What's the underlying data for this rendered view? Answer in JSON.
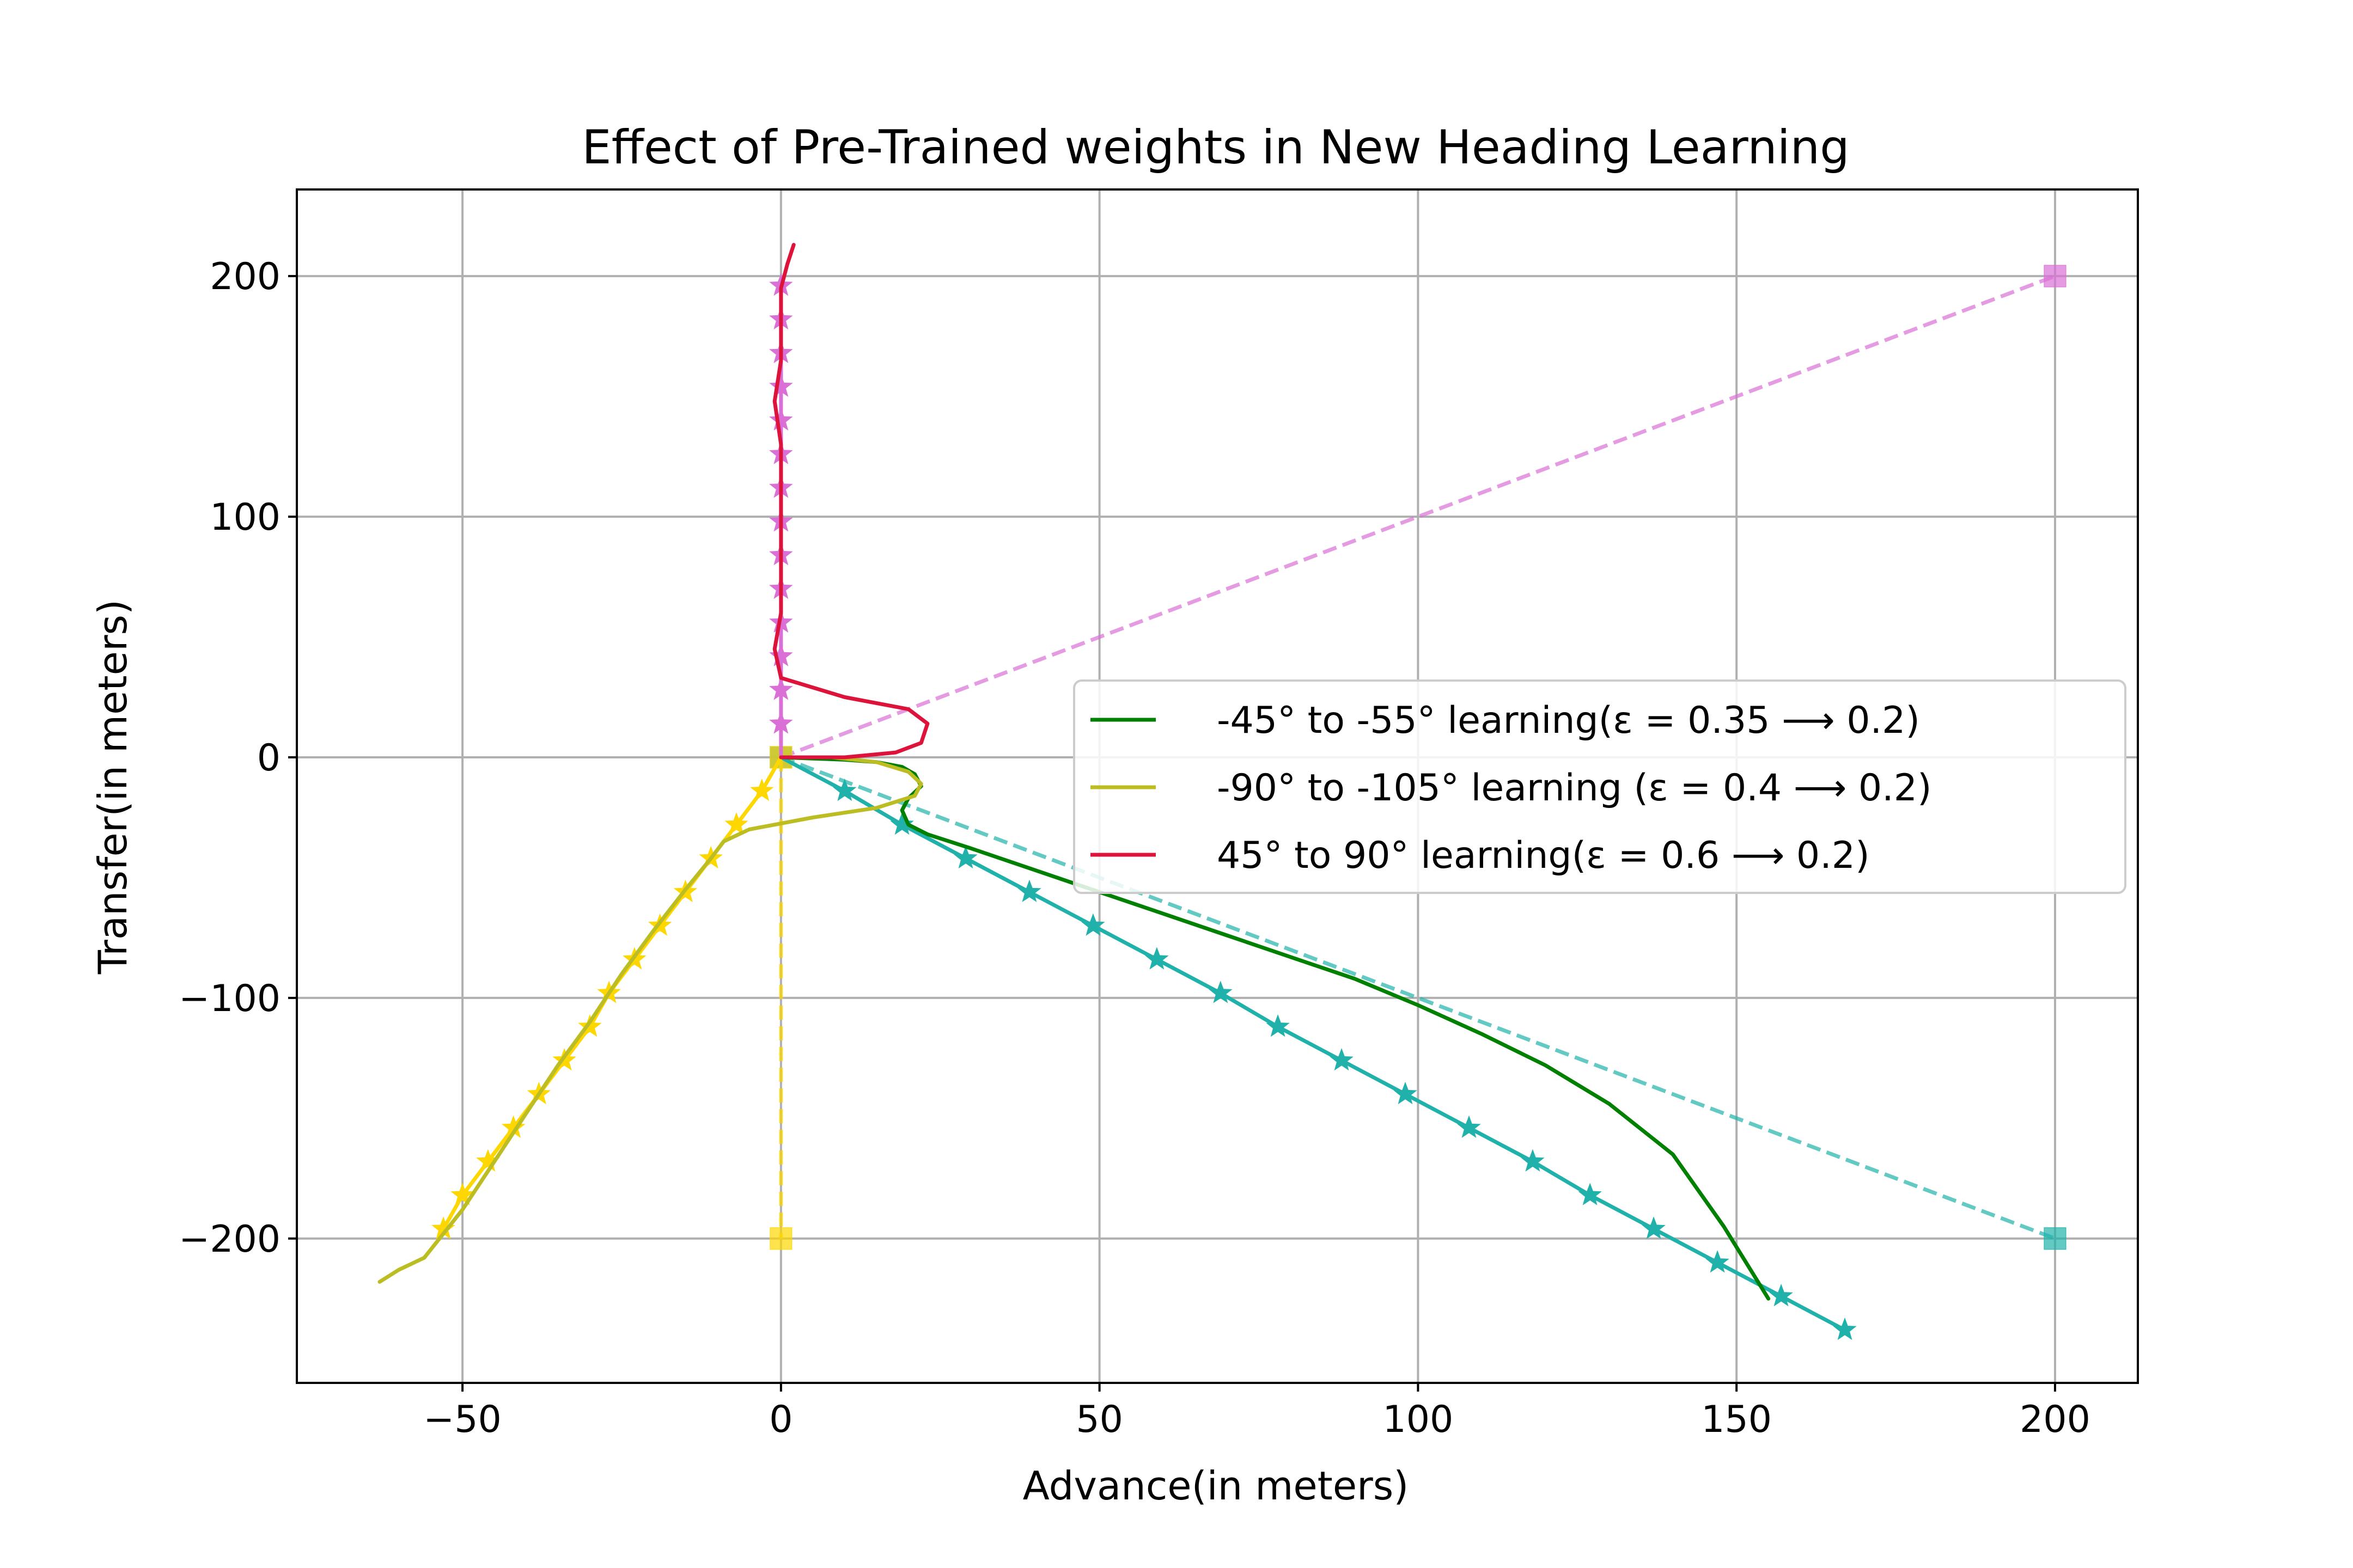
{
  "chart_data": {
    "type": "line",
    "title": "Effect of Pre-Trained weights in New Heading Learning",
    "xlabel": "Advance(in meters)",
    "ylabel": "Transfer(in meters)",
    "xlim": [
      -76,
      213
    ],
    "ylim": [
      -260,
      236
    ],
    "xticks": [
      -50,
      0,
      50,
      100,
      150,
      200
    ],
    "yticks": [
      -200,
      -100,
      0,
      100,
      200
    ],
    "xtick_labels": [
      "−50",
      "0",
      "50",
      "100",
      "150",
      "200"
    ],
    "ytick_labels": [
      "−200",
      "−100",
      "0",
      "100",
      "200"
    ],
    "grid": true,
    "legend_position": "center-right",
    "series": [
      {
        "name": "-45° to -55° learning(ε = 0.35 ⟶ 0.2)",
        "color": "#008000",
        "style": "solid",
        "in_legend": true,
        "x": [
          0,
          5,
          10,
          15,
          19,
          21,
          22,
          20,
          19,
          20,
          23,
          30,
          40,
          50,
          60,
          70,
          80,
          90,
          100,
          110,
          120,
          130,
          140,
          148,
          155
        ],
        "y": [
          0,
          -0.5,
          -1,
          -2,
          -4,
          -7,
          -12,
          -17,
          -22,
          -28,
          -32,
          -38,
          -47,
          -56,
          -65,
          -74,
          -83,
          -92,
          -103,
          -115,
          -128,
          -144,
          -165,
          -195,
          -225
        ]
      },
      {
        "name": "-90° to -105° learning (ε = 0.4 ⟶ 0.2)",
        "color": "#bcbd22",
        "style": "solid",
        "in_legend": true,
        "x": [
          0,
          8,
          15,
          20,
          22,
          21,
          15,
          5,
          -5,
          -9,
          -11,
          -15,
          -20,
          -25,
          -30,
          -35,
          -40,
          -45,
          -50,
          -56,
          -60,
          -63
        ],
        "y": [
          0,
          0,
          -2,
          -6,
          -11,
          -16,
          -21,
          -25,
          -30,
          -35,
          -42,
          -55,
          -72,
          -90,
          -110,
          -128,
          -148,
          -168,
          -188,
          -208,
          -213,
          -218
        ]
      },
      {
        "name": "45° to 90° learning(ε = 0.6 ⟶ 0.2)",
        "color": "#dc143c",
        "style": "solid",
        "in_legend": true,
        "x": [
          0,
          10,
          18,
          22,
          23,
          20,
          10,
          0,
          -1,
          0,
          0,
          0,
          0,
          0,
          -1,
          0,
          0,
          0,
          1,
          2
        ],
        "y": [
          0,
          0,
          2,
          6,
          14,
          20,
          25,
          33,
          45,
          60,
          78,
          95,
          112,
          130,
          148,
          165,
          180,
          195,
          205,
          213
        ]
      },
      {
        "name": "",
        "color": "#20b2aa",
        "style": "solid-star",
        "in_legend": false,
        "x": [
          0,
          10,
          19,
          29,
          39,
          49,
          59,
          69,
          78,
          88,
          98,
          108,
          118,
          127,
          137,
          147,
          157,
          167
        ],
        "y": [
          0,
          -14,
          -28,
          -42,
          -56,
          -70,
          -84,
          -98,
          -112,
          -126,
          -140,
          -154,
          -168,
          -182,
          -196,
          -210,
          -224,
          -238
        ]
      },
      {
        "name": "",
        "color": "#ffd700",
        "style": "solid-star",
        "in_legend": false,
        "x": [
          0,
          -3,
          -7,
          -11,
          -15,
          -19,
          -23,
          -27,
          -30,
          -34,
          -38,
          -42,
          -46,
          -50,
          -53
        ],
        "y": [
          0,
          -14,
          -28,
          -42,
          -56,
          -70,
          -84,
          -98,
          -112,
          -126,
          -140,
          -154,
          -168,
          -182,
          -196
        ]
      },
      {
        "name": "",
        "color": "#da70d6",
        "style": "solid-star",
        "in_legend": false,
        "x": [
          0,
          0,
          0,
          0,
          0,
          0,
          0,
          0,
          0,
          0,
          0,
          0,
          0,
          0,
          0
        ],
        "y": [
          0,
          14,
          28,
          42,
          56,
          70,
          84,
          98,
          112,
          126,
          140,
          154,
          168,
          182,
          196
        ]
      },
      {
        "name": "",
        "color": "#da70d6",
        "style": "dashed",
        "in_legend": false,
        "x": [
          0,
          200
        ],
        "y": [
          0,
          200
        ],
        "end_marker": "square"
      },
      {
        "name": "",
        "color": "#20b2aa",
        "style": "dashed",
        "in_legend": false,
        "x": [
          0,
          200
        ],
        "y": [
          0,
          -200
        ],
        "end_marker": "square"
      },
      {
        "name": "",
        "color": "#ffd700",
        "style": "dashed",
        "in_legend": false,
        "x": [
          0,
          0
        ],
        "y": [
          0,
          -200
        ],
        "end_marker": "square"
      }
    ]
  }
}
